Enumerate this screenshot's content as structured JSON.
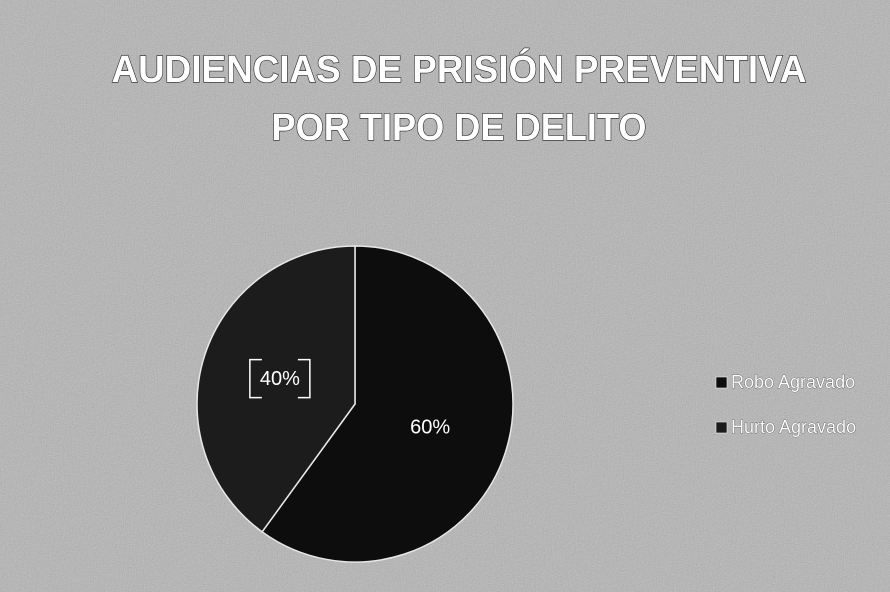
{
  "chart_data": {
    "type": "pie",
    "title": [
      "AUDIENCIAS DE PRISIÓN PREVENTIVA",
      "POR TIPO DE DELITO"
    ],
    "categories": [
      "Robo Agravado",
      "Hurto Agravado"
    ],
    "values": [
      60,
      40
    ],
    "value_labels": [
      "60%",
      "40%"
    ],
    "colors": [
      "#0d0d0d",
      "#1c1c1c"
    ],
    "legend": "right"
  }
}
